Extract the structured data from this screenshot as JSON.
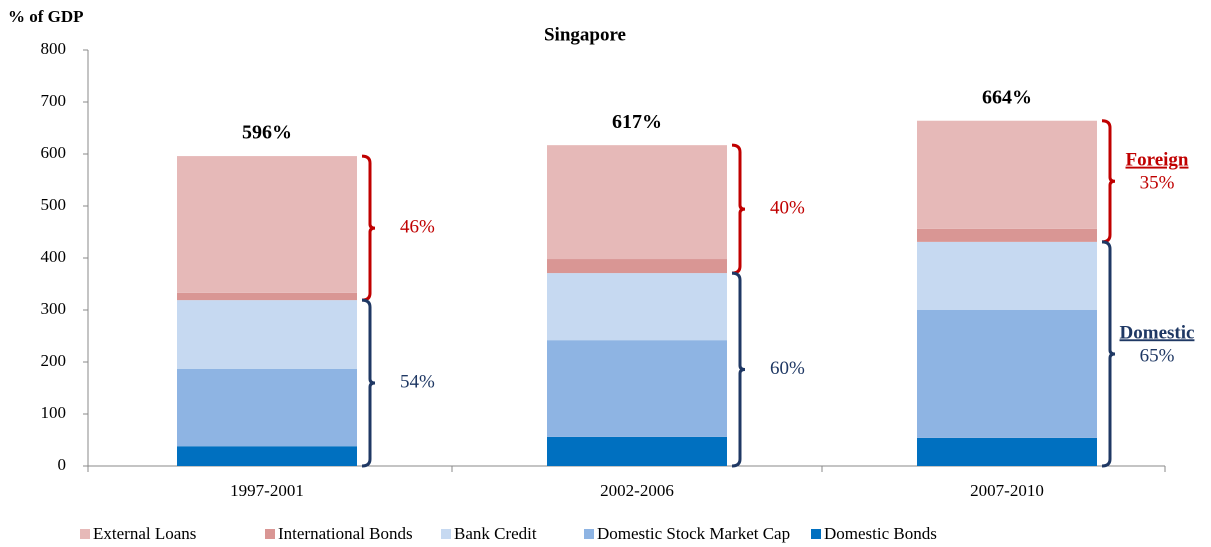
{
  "chart_data": {
    "type": "bar",
    "stacked": true,
    "title": "Singapore",
    "y_label": "% of GDP",
    "categories": [
      "1997-2001",
      "2002-2006",
      "2007-2010"
    ],
    "series": [
      {
        "name": "External Loans",
        "color": "#e6b9b8",
        "values": [
          263,
          219,
          208
        ]
      },
      {
        "name": "International Bonds",
        "color": "#d99694",
        "values": [
          14,
          27,
          25
        ]
      },
      {
        "name": "Bank Credit",
        "color": "#c6d9f1",
        "values": [
          132,
          129,
          131
        ]
      },
      {
        "name": "Domestic Stock Market Cap",
        "color": "#8eb4e3",
        "values": [
          149,
          186,
          246
        ]
      },
      {
        "name": "Domestic Bonds",
        "color": "#0070c0",
        "values": [
          38,
          56,
          54
        ]
      }
    ],
    "totals": {
      "values": [
        596,
        617,
        664
      ],
      "value_labels": [
        "596%",
        "617%",
        "664%"
      ]
    },
    "shares": {
      "foreign": {
        "name": "Foreign",
        "color": "#c00000",
        "values": [
          46,
          40,
          35
        ],
        "value_labels": [
          "46%",
          "40%",
          "35%"
        ]
      },
      "domestic": {
        "name": "Domestic",
        "color": "#1f3864",
        "values": [
          54,
          60,
          65
        ],
        "value_labels": [
          "54%",
          "60%",
          "65%"
        ]
      }
    },
    "ylim": [
      0,
      800
    ],
    "yticks": [
      0,
      100,
      200,
      300,
      400,
      500,
      600,
      700,
      800
    ]
  }
}
